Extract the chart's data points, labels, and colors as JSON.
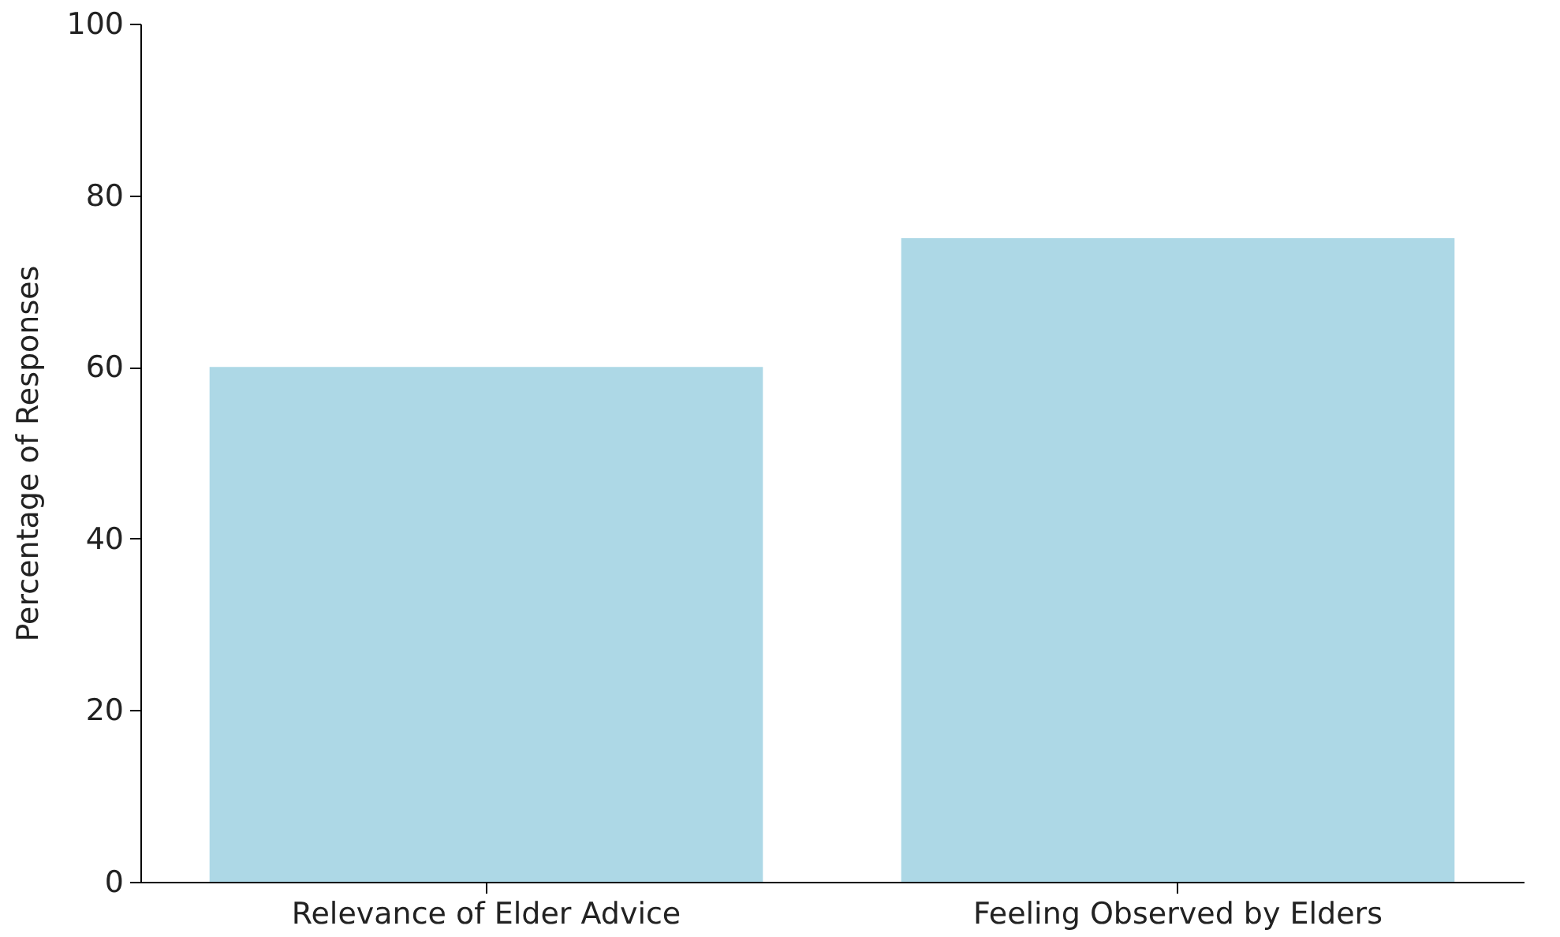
{
  "chart_data": {
    "type": "bar",
    "ylabel": "Percentage of Responses",
    "categories": [
      "Relevance of Elder Advice",
      "Feeling Observed by Elders"
    ],
    "values": [
      60,
      75
    ],
    "color": "#add8e6",
    "ylim": [
      0,
      100
    ],
    "yticks": [
      0,
      20,
      40,
      60,
      80,
      100
    ],
    "grid": false
  }
}
